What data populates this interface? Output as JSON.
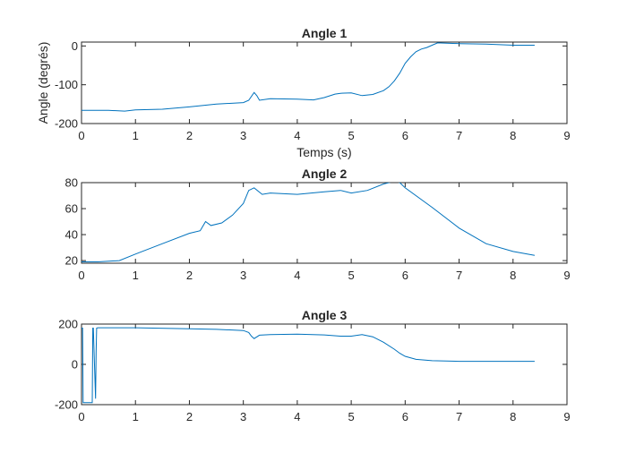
{
  "chart_data": [
    {
      "type": "line",
      "title": "Angle 1",
      "xlabel": "Temps (s)",
      "ylabel": "Angle (degrés)",
      "xlim": [
        0,
        9
      ],
      "ylim": [
        -200,
        10
      ],
      "xticks": [
        0,
        1,
        2,
        3,
        4,
        5,
        6,
        7,
        8,
        9
      ],
      "yticks": [
        -200,
        -100,
        0
      ],
      "grid": false,
      "line_color": "#0072bd",
      "x": [
        0,
        0.5,
        0.8,
        1.0,
        1.5,
        2.0,
        2.5,
        3.0,
        3.1,
        3.2,
        3.25,
        3.3,
        3.5,
        4.0,
        4.3,
        4.5,
        4.7,
        4.8,
        5.0,
        5.2,
        5.4,
        5.6,
        5.7,
        5.8,
        5.9,
        6.0,
        6.1,
        6.2,
        6.3,
        6.4,
        6.5,
        6.6,
        7.0,
        7.5,
        8.0,
        8.4
      ],
      "y": [
        -166,
        -166,
        -168,
        -165,
        -163,
        -157,
        -150,
        -146,
        -140,
        -120,
        -128,
        -140,
        -136,
        -137,
        -139,
        -133,
        -124,
        -122,
        -121,
        -128,
        -125,
        -115,
        -105,
        -90,
        -70,
        -45,
        -28,
        -15,
        -8,
        -4,
        2,
        8,
        6,
        5,
        2,
        2
      ]
    },
    {
      "type": "line",
      "title": "Angle 2",
      "xlabel": "",
      "ylabel": "",
      "xlim": [
        0,
        9
      ],
      "ylim": [
        18,
        80
      ],
      "xticks": [
        0,
        1,
        2,
        3,
        4,
        5,
        6,
        7,
        8,
        9
      ],
      "yticks": [
        20,
        40,
        60,
        80
      ],
      "grid": false,
      "line_color": "#0072bd",
      "x": [
        0,
        0.3,
        0.7,
        1.0,
        1.5,
        2.0,
        2.2,
        2.3,
        2.4,
        2.6,
        2.8,
        3.0,
        3.1,
        3.2,
        3.35,
        3.5,
        4.0,
        4.5,
        4.8,
        5.0,
        5.3,
        5.6,
        5.8,
        5.9,
        6.0,
        6.5,
        7.0,
        7.5,
        8.0,
        8.4
      ],
      "y": [
        19,
        19,
        20,
        25,
        33,
        41,
        43,
        50,
        47,
        49,
        55,
        64,
        74,
        76,
        71,
        72,
        71,
        73,
        74,
        72,
        74,
        79,
        81,
        80,
        76,
        61,
        45,
        33,
        27,
        24
      ]
    },
    {
      "type": "line",
      "title": "Angle 3",
      "xlabel": "",
      "ylabel": "",
      "xlim": [
        0,
        9
      ],
      "ylim": [
        -200,
        200
      ],
      "xticks": [
        0,
        1,
        2,
        3,
        4,
        5,
        6,
        7,
        8,
        9
      ],
      "yticks": [
        -200,
        0,
        200
      ],
      "grid": false,
      "line_color": "#0072bd",
      "x": [
        0,
        0.02,
        0.03,
        0.2,
        0.21,
        0.22,
        0.26,
        0.27,
        0.28,
        0.3,
        1.0,
        2.0,
        2.5,
        3.0,
        3.1,
        3.15,
        3.2,
        3.3,
        3.5,
        4.0,
        4.5,
        4.8,
        5.0,
        5.2,
        5.4,
        5.6,
        5.8,
        5.9,
        6.0,
        6.2,
        6.5,
        7.0,
        7.5,
        8.0,
        8.4
      ],
      "y": [
        180,
        180,
        -190,
        -190,
        180,
        180,
        -170,
        60,
        180,
        182,
        182,
        177,
        174,
        168,
        158,
        140,
        128,
        145,
        148,
        150,
        146,
        140,
        140,
        148,
        137,
        110,
        75,
        55,
        40,
        25,
        18,
        15,
        15,
        15,
        15
      ]
    }
  ]
}
